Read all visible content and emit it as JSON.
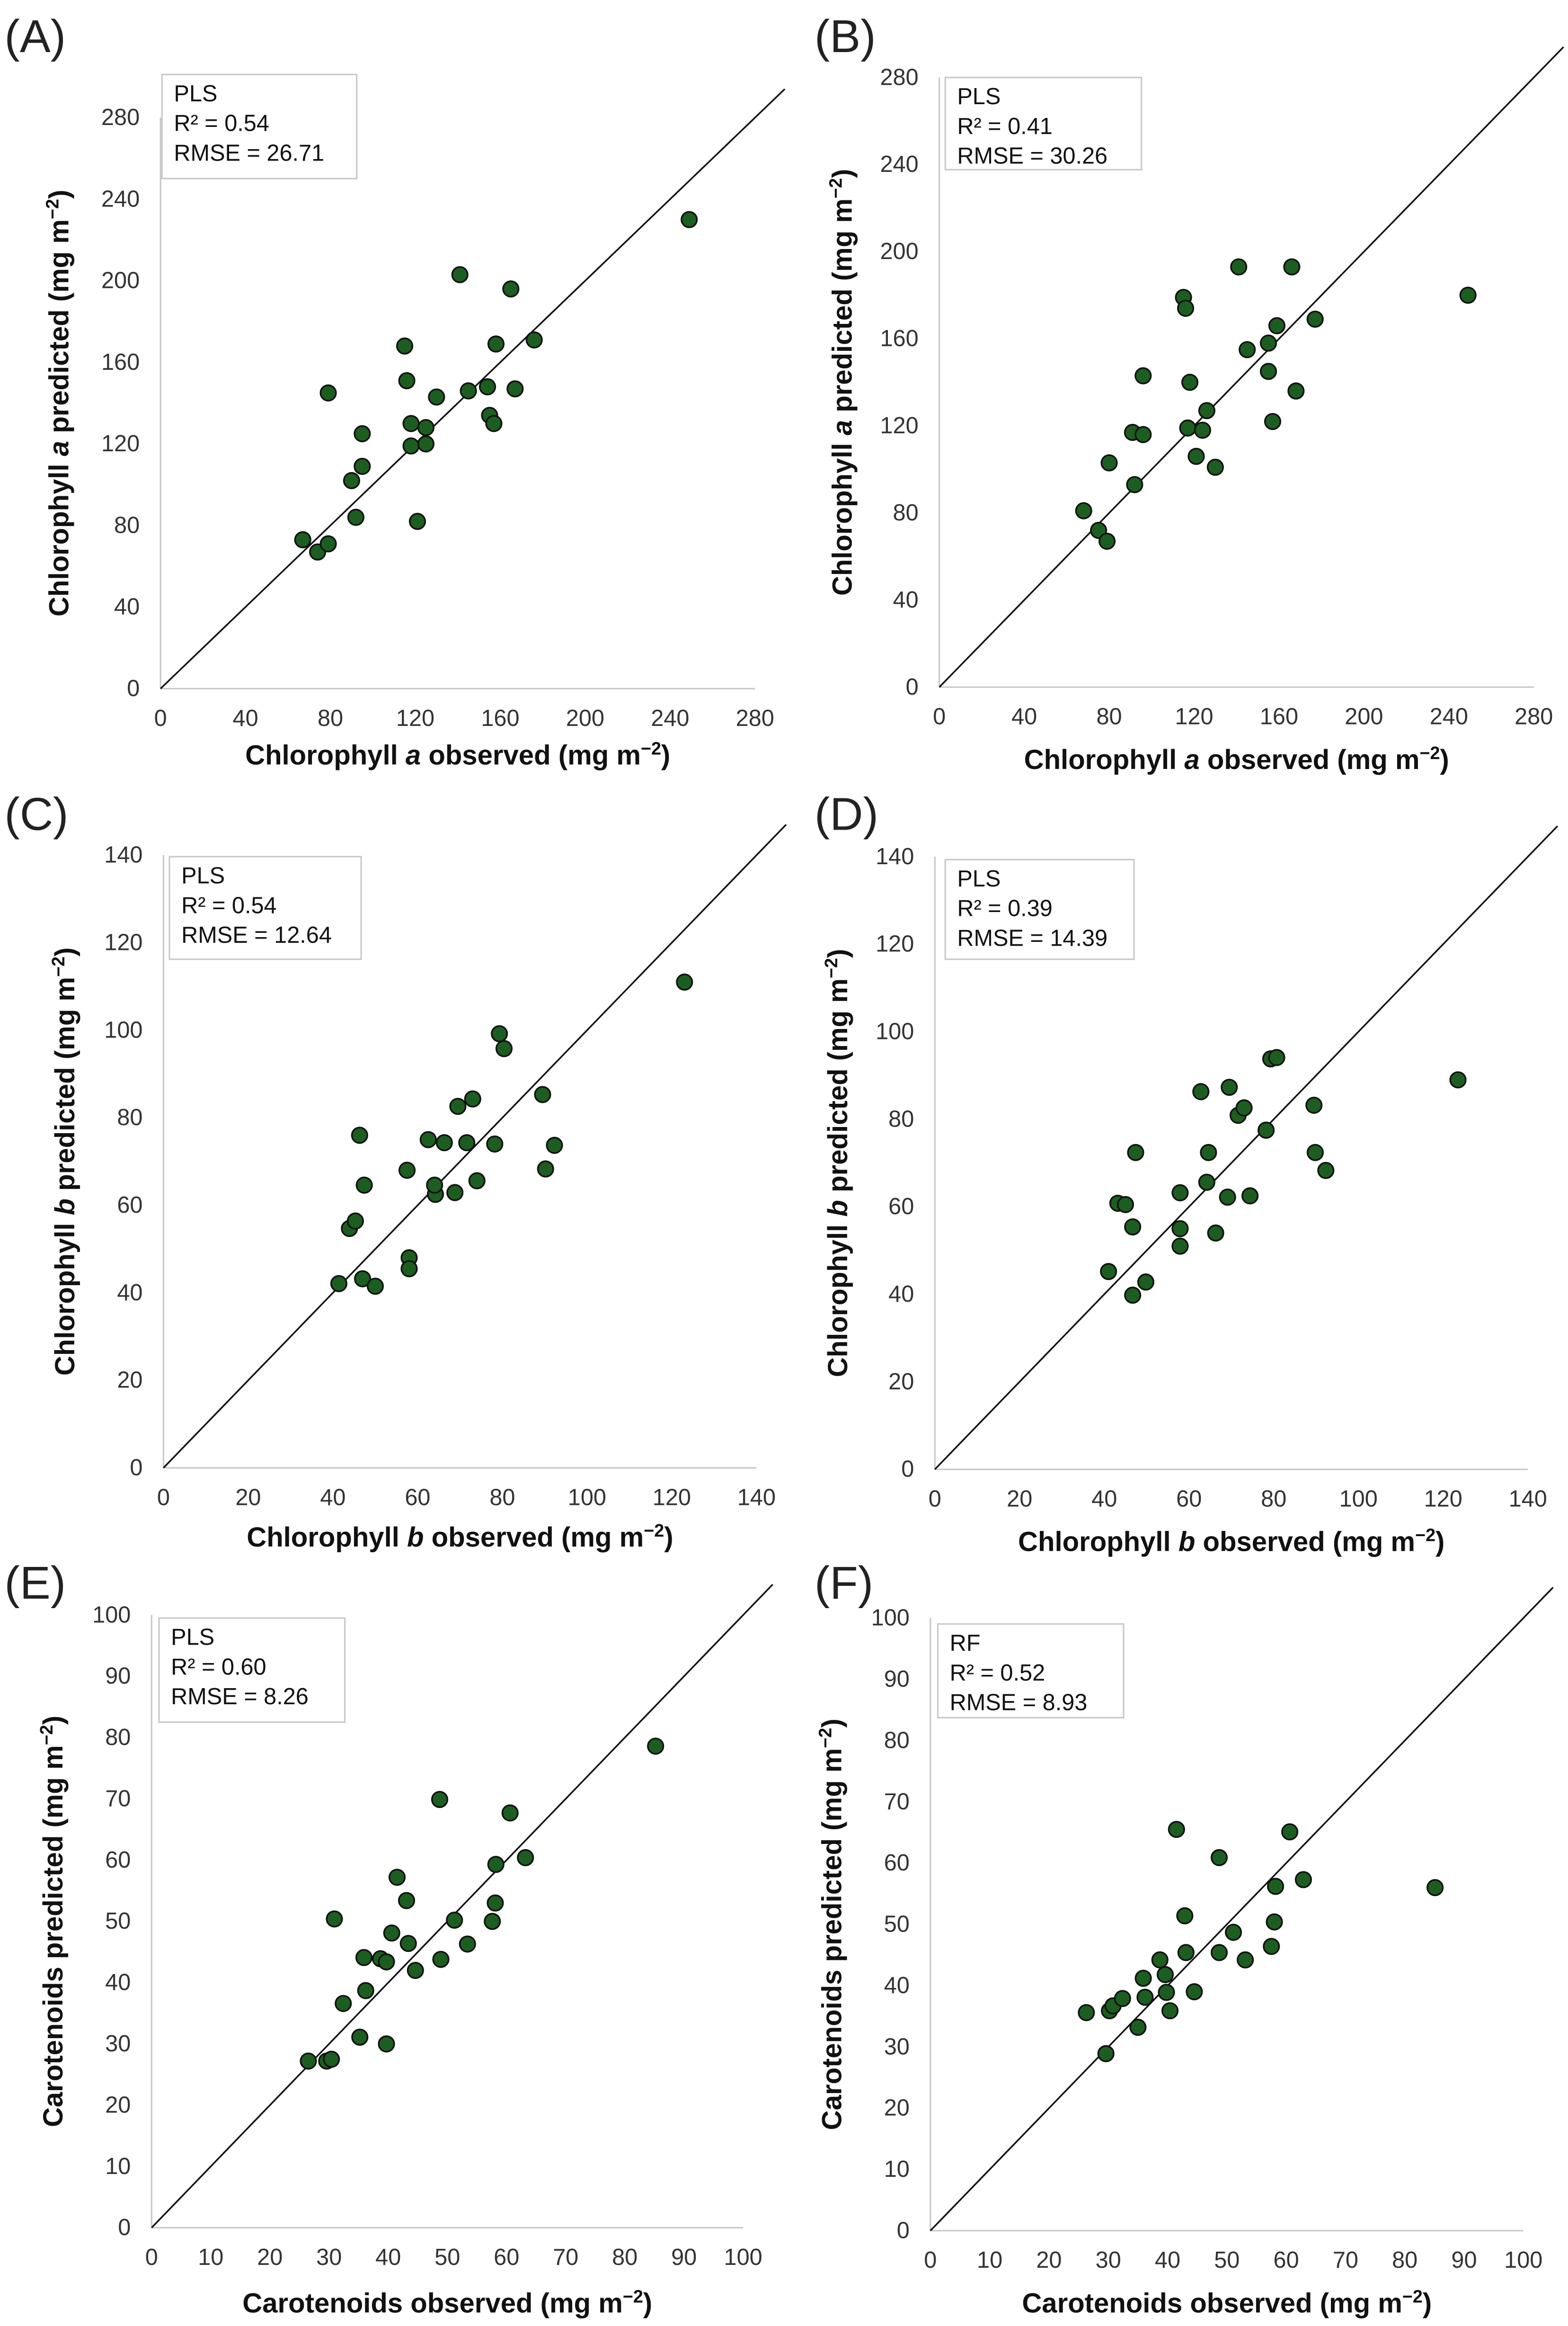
{
  "chart_data": [
    {
      "panel": "(A)",
      "type": "scatter",
      "stats": {
        "model": "PLS",
        "r2": "R² = 0.54",
        "rmse": "RMSE = 26.71"
      },
      "xlabel": {
        "pre": "Chlorophyll ",
        "it": "a",
        "post": " observed (mg m",
        "sup": "−2",
        "end": ")"
      },
      "ylabel": {
        "pre": "Chlorophyll ",
        "it": "a",
        "post": " predicted (mg m",
        "sup": "−2",
        "end": ")"
      },
      "xlim": [
        0,
        280
      ],
      "ylim": [
        0,
        280
      ],
      "xticks": [
        0,
        40,
        80,
        120,
        160,
        200,
        240,
        280
      ],
      "yticks": [
        0,
        40,
        80,
        120,
        160,
        200,
        240,
        280
      ],
      "reference_line": "1:1",
      "points": [
        [
          67,
          73
        ],
        [
          74,
          67
        ],
        [
          79,
          71
        ],
        [
          79,
          145
        ],
        [
          90,
          102
        ],
        [
          92,
          84
        ],
        [
          95,
          109
        ],
        [
          95,
          125
        ],
        [
          115,
          168
        ],
        [
          116,
          151
        ],
        [
          118,
          130
        ],
        [
          118,
          119
        ],
        [
          121,
          82
        ],
        [
          125,
          128
        ],
        [
          125,
          120
        ],
        [
          130,
          143
        ],
        [
          141,
          203
        ],
        [
          145,
          146
        ],
        [
          154,
          148
        ],
        [
          155,
          134
        ],
        [
          157,
          130
        ],
        [
          158,
          169
        ],
        [
          165,
          196
        ],
        [
          167,
          147
        ],
        [
          176,
          171
        ],
        [
          249,
          230
        ]
      ]
    },
    {
      "panel": "(B)",
      "type": "scatter",
      "stats": {
        "model": "PLS",
        "r2": "R² = 0.41",
        "rmse": "RMSE = 30.26"
      },
      "xlabel": {
        "pre": "Chlorophyll ",
        "it": "a",
        "post": " observed (mg m",
        "sup": "−2",
        "end": ")"
      },
      "ylabel": {
        "pre": "Chlorophyll ",
        "it": "a",
        "post": " predicted (mg m",
        "sup": "−2",
        "end": ")"
      },
      "xlim": [
        0,
        280
      ],
      "ylim": [
        0,
        280
      ],
      "xticks": [
        0,
        40,
        80,
        120,
        160,
        200,
        240,
        280
      ],
      "yticks": [
        0,
        40,
        80,
        120,
        160,
        200,
        240,
        280
      ],
      "reference_line": "1:1",
      "points": [
        [
          68,
          81
        ],
        [
          75,
          72
        ],
        [
          79,
          67
        ],
        [
          80,
          103
        ],
        [
          91,
          117
        ],
        [
          92,
          93
        ],
        [
          96,
          116
        ],
        [
          96,
          143
        ],
        [
          115,
          179
        ],
        [
          116,
          174
        ],
        [
          117,
          119
        ],
        [
          118,
          140
        ],
        [
          121,
          106
        ],
        [
          124,
          118
        ],
        [
          126,
          127
        ],
        [
          130,
          101
        ],
        [
          141,
          193
        ],
        [
          145,
          155
        ],
        [
          155,
          158
        ],
        [
          155,
          145
        ],
        [
          157,
          122
        ],
        [
          159,
          166
        ],
        [
          166,
          193
        ],
        [
          168,
          136
        ],
        [
          177,
          169
        ],
        [
          249,
          180
        ]
      ]
    },
    {
      "panel": "(C)",
      "type": "scatter",
      "stats": {
        "model": "PLS",
        "r2": "R² = 0.54",
        "rmse": "RMSE = 12.64"
      },
      "xlabel": {
        "pre": "Chlorophyll ",
        "it": "b",
        "post": " observed (mg m",
        "sup": "−2",
        "end": ")"
      },
      "ylabel": {
        "pre": "Chlorophyll ",
        "it": "b",
        "post": " predicted (mg m",
        "sup": "−2",
        "end": ")"
      },
      "xlim": [
        0,
        140
      ],
      "ylim": [
        0,
        140
      ],
      "xticks": [
        0,
        20,
        40,
        60,
        80,
        100,
        120,
        140
      ],
      "yticks": [
        0,
        20,
        40,
        60,
        80,
        100,
        120,
        140
      ],
      "reference_line": "1:1",
      "points": [
        [
          41.4,
          42.1
        ],
        [
          43.9,
          54.7
        ],
        [
          45.3,
          56.4
        ],
        [
          46.3,
          76
        ],
        [
          47.4,
          64.6
        ],
        [
          47,
          43.2
        ],
        [
          50,
          41.5
        ],
        [
          57.5,
          68
        ],
        [
          58,
          48
        ],
        [
          58,
          45.5
        ],
        [
          62.5,
          75
        ],
        [
          64.2,
          62.5
        ],
        [
          64,
          64.6
        ],
        [
          66.3,
          74.3
        ],
        [
          68.8,
          62.9
        ],
        [
          69.5,
          82.6
        ],
        [
          71.6,
          74.3
        ],
        [
          73,
          84.3
        ],
        [
          74,
          65.6
        ],
        [
          78.2,
          74
        ],
        [
          79.3,
          99.2
        ],
        [
          80.4,
          95.8
        ],
        [
          89.5,
          85.3
        ],
        [
          90.2,
          68.3
        ],
        [
          92.3,
          73.7
        ],
        [
          123,
          111
        ]
      ]
    },
    {
      "panel": "(D)",
      "type": "scatter",
      "stats": {
        "model": "PLS",
        "r2": "R² = 0.39",
        "rmse": "RMSE = 14.39"
      },
      "xlabel": {
        "pre": "Chlorophyll ",
        "it": "b",
        "post": " observed (mg m",
        "sup": "−2",
        "end": ")"
      },
      "ylabel": {
        "pre": "Chlorophyll ",
        "it": "b",
        "post": " predicted (mg m",
        "sup": "−2",
        "end": ")"
      },
      "xlim": [
        0,
        140
      ],
      "ylim": [
        0,
        140
      ],
      "xticks": [
        0,
        20,
        40,
        60,
        80,
        100,
        120,
        140
      ],
      "yticks": [
        0,
        20,
        40,
        60,
        80,
        100,
        120,
        140
      ],
      "reference_line": "1:1",
      "points": [
        [
          41,
          45.2
        ],
        [
          43.2,
          60.8
        ],
        [
          45,
          60.5
        ],
        [
          46.7,
          55.4
        ],
        [
          47.4,
          72.4
        ],
        [
          46.7,
          39.8
        ],
        [
          49.8,
          42.8
        ],
        [
          57.9,
          63.2
        ],
        [
          57.9,
          55
        ],
        [
          57.9,
          51
        ],
        [
          62.8,
          86.3
        ],
        [
          64.6,
          72.4
        ],
        [
          64.2,
          65.6
        ],
        [
          66.3,
          54
        ],
        [
          69.1,
          62.2
        ],
        [
          69.5,
          87.3
        ],
        [
          71.6,
          80.9
        ],
        [
          73,
          82.6
        ],
        [
          74.4,
          62.5
        ],
        [
          78.2,
          77.5
        ],
        [
          79.3,
          93.8
        ],
        [
          80.7,
          94.1
        ],
        [
          89.5,
          83.2
        ],
        [
          89.8,
          72.4
        ],
        [
          92.3,
          68.3
        ],
        [
          123.5,
          89
        ]
      ]
    },
    {
      "panel": "(E)",
      "type": "scatter",
      "stats": {
        "model": "PLS",
        "r2": "R² = 0.60",
        "rmse": "RMSE = 8.26"
      },
      "xlabel": {
        "pre": "Carotenoids observed (mg m",
        "it": "",
        "post": "",
        "sup": "−2",
        "end": ")"
      },
      "ylabel": {
        "pre": "Carotenoids predicted (mg m",
        "it": "",
        "post": "",
        "sup": "−2",
        "end": ")"
      },
      "xlim": [
        0,
        100
      ],
      "ylim": [
        0,
        100
      ],
      "xticks": [
        0,
        10,
        20,
        30,
        40,
        50,
        60,
        70,
        80,
        90,
        100
      ],
      "yticks": [
        0,
        10,
        20,
        30,
        40,
        50,
        60,
        70,
        80,
        90,
        100
      ],
      "reference_line": "1:1",
      "points": [
        [
          26.5,
          27.2
        ],
        [
          29.6,
          27.2
        ],
        [
          30.4,
          27.5
        ],
        [
          30.9,
          50.4
        ],
        [
          32.4,
          36.6
        ],
        [
          35.2,
          31.1
        ],
        [
          35.9,
          44.1
        ],
        [
          36.2,
          38.7
        ],
        [
          38.7,
          43.9
        ],
        [
          39.7,
          43.4
        ],
        [
          39.7,
          30
        ],
        [
          40.6,
          48.1
        ],
        [
          41.5,
          57.2
        ],
        [
          43.1,
          53.4
        ],
        [
          43.4,
          46.4
        ],
        [
          44.6,
          42
        ],
        [
          48.7,
          69.9
        ],
        [
          48.9,
          43.8
        ],
        [
          51.2,
          50.2
        ],
        [
          53.4,
          46.3
        ],
        [
          57.6,
          50
        ],
        [
          58.1,
          53
        ],
        [
          58.2,
          59.3
        ],
        [
          60.6,
          67.7
        ],
        [
          63.2,
          60.4
        ],
        [
          85.2,
          78.6
        ]
      ]
    },
    {
      "panel": "(F)",
      "type": "scatter",
      "stats": {
        "model": "RF",
        "r2": "R² = 0.52",
        "rmse": "RMSE = 8.93"
      },
      "xlabel": {
        "pre": "Carotenoids observed (mg m",
        "it": "",
        "post": "",
        "sup": "−2",
        "end": ")"
      },
      "ylabel": {
        "pre": "Carotenoids predicted (mg m",
        "it": "",
        "post": "",
        "sup": "−2",
        "end": ")"
      },
      "xlim": [
        0,
        100
      ],
      "ylim": [
        0,
        100
      ],
      "xticks": [
        0,
        10,
        20,
        30,
        40,
        50,
        60,
        70,
        80,
        90,
        100
      ],
      "yticks": [
        0,
        10,
        20,
        30,
        40,
        50,
        60,
        70,
        80,
        90,
        100
      ],
      "reference_line": "1:1",
      "points": [
        [
          26.3,
          35.6
        ],
        [
          30.2,
          35.9
        ],
        [
          30.8,
          36.7
        ],
        [
          32.4,
          37.9
        ],
        [
          29.6,
          28.9
        ],
        [
          35,
          33.2
        ],
        [
          35.9,
          41.2
        ],
        [
          36.2,
          38.1
        ],
        [
          38.7,
          44.2
        ],
        [
          39.6,
          41.8
        ],
        [
          39.8,
          38.9
        ],
        [
          40.4,
          35.9
        ],
        [
          41.5,
          65.5
        ],
        [
          42.9,
          51.4
        ],
        [
          43.1,
          45.4
        ],
        [
          44.5,
          39
        ],
        [
          48.7,
          60.9
        ],
        [
          48.7,
          45.4
        ],
        [
          51.1,
          48.7
        ],
        [
          53.1,
          44.2
        ],
        [
          57.5,
          46.4
        ],
        [
          58,
          50.4
        ],
        [
          58.2,
          56.2
        ],
        [
          60.6,
          65.1
        ],
        [
          62.9,
          57.3
        ],
        [
          85.1,
          56
        ]
      ]
    }
  ],
  "colors": {
    "point_fill": "#1b5e20",
    "point_stroke": "#111111",
    "axis": "#c8c8c8",
    "line": "#111111"
  }
}
